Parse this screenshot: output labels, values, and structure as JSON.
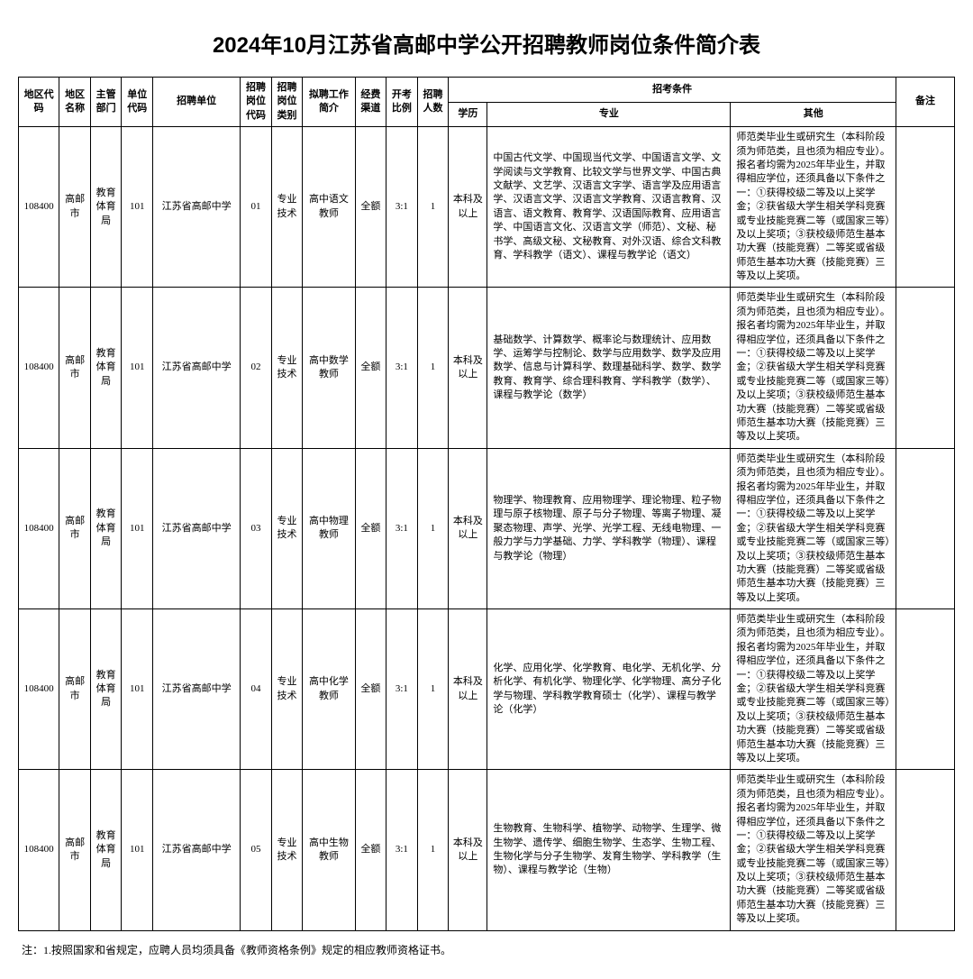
{
  "title": "2024年10月江苏省高邮中学公开招聘教师岗位条件简介表",
  "columns": {
    "regionCode": "地区代码",
    "regionName": "地区名称",
    "dept": "主管部门",
    "unitCode": "单位代码",
    "unit": "招聘单位",
    "posCode": "招聘岗位代码",
    "posType": "招聘岗位类别",
    "work": "拟聘工作简介",
    "fund": "经费渠道",
    "ratio": "开考比例",
    "count": "招聘人数",
    "conditions": "招考条件",
    "edu": "学历",
    "major": "专业",
    "other": "其他",
    "note": "备注"
  },
  "rows": [
    {
      "regionCode": "108400",
      "regionName": "高邮市",
      "dept": "教育体育局",
      "unitCode": "101",
      "unit": "江苏省高邮中学",
      "posCode": "01",
      "posType": "专业技术",
      "work": "高中语文教师",
      "fund": "全额",
      "ratio": "3:1",
      "count": "1",
      "edu": "本科及以上",
      "major": "中国古代文学、中国现当代文学、中国语言文学、文学阅读与文学教育、比较文学与世界文学、中国古典文献学、文艺学、汉语言文字学、语言学及应用语言学、汉语言文学、汉语言文学教育、汉语言教育、汉语言、语文教育、教育学、汉语国际教育、应用语言学、中国语言文化、汉语言文学（师范）、文秘、秘书学、高级文秘、文秘教育、对外汉语、综合文科教育、学科教学（语文）、课程与教学论（语文）",
      "other": "师范类毕业生或研究生（本科阶段须为师范类，且也须为相应专业）。报名者均需为2025年毕业生，并取得相应学位，还须具备以下条件之一：①获得校级二等及以上奖学金；②获省级大学生相关学科竞赛或专业技能竞赛二等（或国家三等）及以上奖项；③获校级师范生基本功大赛（技能竞赛）二等奖或省级师范生基本功大赛（技能竞赛）三等及以上奖项。",
      "note": ""
    },
    {
      "regionCode": "108400",
      "regionName": "高邮市",
      "dept": "教育体育局",
      "unitCode": "101",
      "unit": "江苏省高邮中学",
      "posCode": "02",
      "posType": "专业技术",
      "work": "高中数学教师",
      "fund": "全额",
      "ratio": "3:1",
      "count": "1",
      "edu": "本科及以上",
      "major": "基础数学、计算数学、概率论与数理统计、应用数学、运筹学与控制论、数学与应用数学、数学及应用数学、信息与计算科学、数理基础科学、数学、数学教育、教育学、综合理科教育、学科教学（数学）、课程与教学论（数学）",
      "other": "师范类毕业生或研究生（本科阶段须为师范类，且也须为相应专业）。报名者均需为2025年毕业生，并取得相应学位，还须具备以下条件之一：①获得校级二等及以上奖学金；②获省级大学生相关学科竞赛或专业技能竞赛二等（或国家三等）及以上奖项；③获校级师范生基本功大赛（技能竞赛）二等奖或省级师范生基本功大赛（技能竞赛）三等及以上奖项。",
      "note": ""
    },
    {
      "regionCode": "108400",
      "regionName": "高邮市",
      "dept": "教育体育局",
      "unitCode": "101",
      "unit": "江苏省高邮中学",
      "posCode": "03",
      "posType": "专业技术",
      "work": "高中物理教师",
      "fund": "全额",
      "ratio": "3:1",
      "count": "1",
      "edu": "本科及以上",
      "major": "物理学、物理教育、应用物理学、理论物理、粒子物理与原子核物理、原子与分子物理、等离子物理、凝聚态物理、声学、光学、光学工程、无线电物理、一般力学与力学基础、力学、学科教学（物理）、课程与教学论（物理）",
      "other": "师范类毕业生或研究生（本科阶段须为师范类，且也须为相应专业）。报名者均需为2025年毕业生，并取得相应学位，还须具备以下条件之一：①获得校级二等及以上奖学金；②获省级大学生相关学科竞赛或专业技能竞赛二等（或国家三等）及以上奖项；③获校级师范生基本功大赛（技能竞赛）二等奖或省级师范生基本功大赛（技能竞赛）三等及以上奖项。",
      "note": ""
    },
    {
      "regionCode": "108400",
      "regionName": "高邮市",
      "dept": "教育体育局",
      "unitCode": "101",
      "unit": "江苏省高邮中学",
      "posCode": "04",
      "posType": "专业技术",
      "work": "高中化学教师",
      "fund": "全额",
      "ratio": "3:1",
      "count": "1",
      "edu": "本科及以上",
      "major": "化学、应用化学、化学教育、电化学、无机化学、分析化学、有机化学、物理化学、化学物理、高分子化学与物理、学科教学教育硕士（化学）、课程与教学论（化学）",
      "other": "师范类毕业生或研究生（本科阶段须为师范类，且也须为相应专业）。报名者均需为2025年毕业生，并取得相应学位，还须具备以下条件之一：①获得校级二等及以上奖学金；②获省级大学生相关学科竞赛或专业技能竞赛二等（或国家三等）及以上奖项；③获校级师范生基本功大赛（技能竞赛）二等奖或省级师范生基本功大赛（技能竞赛）三等及以上奖项。",
      "note": ""
    },
    {
      "regionCode": "108400",
      "regionName": "高邮市",
      "dept": "教育体育局",
      "unitCode": "101",
      "unit": "江苏省高邮中学",
      "posCode": "05",
      "posType": "专业技术",
      "work": "高中生物教师",
      "fund": "全额",
      "ratio": "3:1",
      "count": "1",
      "edu": "本科及以上",
      "major": "生物教育、生物科学、植物学、动物学、生理学、微生物学、遗传学、细胞生物学、生态学、生物工程、生物化学与分子生物学、发育生物学、学科教学（生物）、课程与教学论（生物）",
      "other": "师范类毕业生或研究生（本科阶段须为师范类，且也须为相应专业）。报名者均需为2025年毕业生，并取得相应学位，还须具备以下条件之一：①获得校级二等及以上奖学金；②获省级大学生相关学科竞赛或专业技能竞赛二等（或国家三等）及以上奖项；③获校级师范生基本功大赛（技能竞赛）二等奖或省级师范生基本功大赛（技能竞赛）三等及以上奖项。",
      "note": ""
    }
  ],
  "footnote": "注：1.按照国家和省规定，应聘人员均须具备《教师资格条例》规定的相应教师资格证书。"
}
